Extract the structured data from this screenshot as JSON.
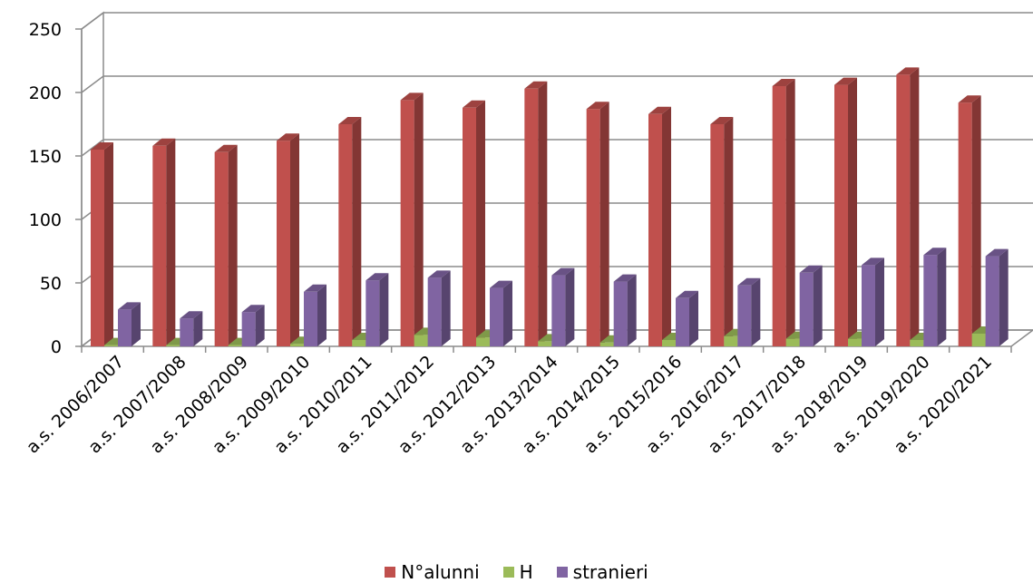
{
  "chart_data": {
    "type": "bar",
    "subtype": "3d-clustered-column",
    "categories": [
      "a.s. 2006/2007",
      "a.s. 2007/2008",
      "a.s. 2008/2009",
      "a.s. 2009/2010",
      "a.s. 2010/2011",
      "a.s. 2011/2012",
      "a.s. 2012/2013",
      "a.s. 2013/2014",
      "a.s. 2014/2015",
      "a.s. 2015/2016",
      "a.s. 2016/2017",
      "a.s. 2017/2018",
      "a.s. 2018/2019",
      "a.s. 2019/2020",
      "a.s. 2020/2021"
    ],
    "series": [
      {
        "name": "N°alunni",
        "color": "#c0504d",
        "values": [
          155,
          158,
          153,
          162,
          175,
          194,
          188,
          203,
          187,
          183,
          175,
          205,
          206,
          214,
          192
        ]
      },
      {
        "name": "H",
        "color": "#9bbb59",
        "values": [
          1,
          1,
          1,
          2,
          5,
          9,
          7,
          4,
          3,
          5,
          8,
          6,
          6,
          5,
          10
        ]
      },
      {
        "name": "stranieri",
        "color": "#8064a2",
        "values": [
          29,
          22,
          27,
          43,
          52,
          54,
          46,
          56,
          51,
          38,
          48,
          58,
          64,
          72,
          71
        ]
      }
    ],
    "title": "",
    "xlabel": "",
    "ylabel": "",
    "ylim": [
      0,
      250
    ],
    "yticks": [
      "0",
      "50",
      "100",
      "150",
      "200",
      "250"
    ],
    "grid": true,
    "legend_position": "bottom"
  }
}
